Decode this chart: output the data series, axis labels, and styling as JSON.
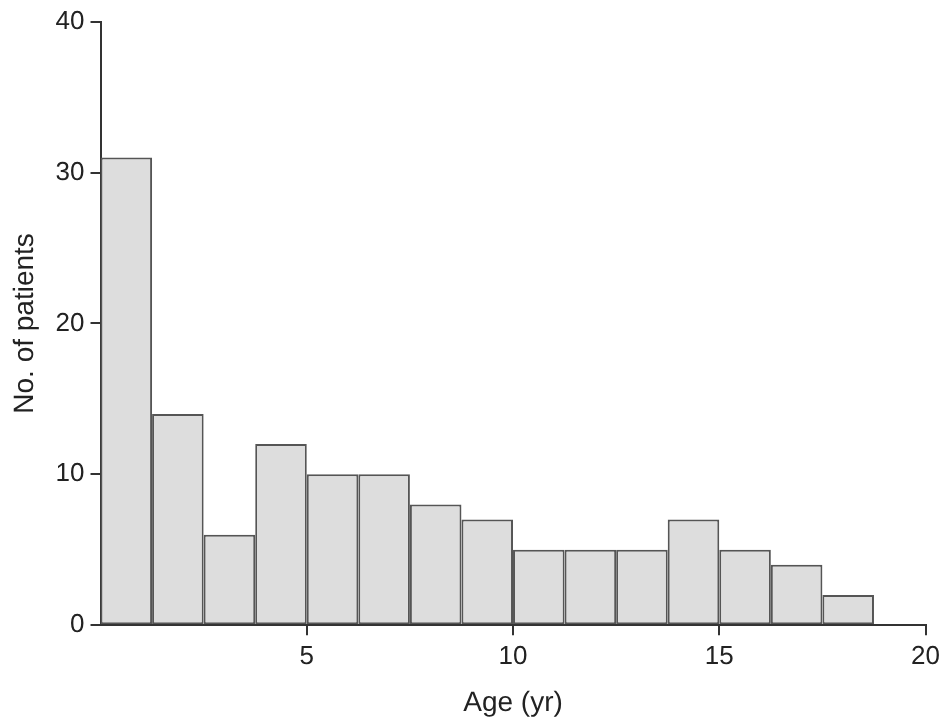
{
  "chart_data": {
    "type": "histogram",
    "xlabel": "Age (yr)",
    "ylabel": "No. of patients",
    "bins": [
      0,
      1.25,
      2.5,
      3.75,
      5,
      6.25,
      7.5,
      8.75,
      10,
      11.25,
      12.5,
      13.75,
      15,
      16.25,
      17.5,
      18.75
    ],
    "values": [
      31,
      14,
      6,
      12,
      10,
      10,
      8,
      7,
      5,
      5,
      5,
      7,
      5,
      4,
      2
    ],
    "color": "#dddddd",
    "xlim": [
      0,
      20
    ],
    "xticks": [
      5,
      10,
      15,
      20
    ],
    "ylim": [
      0,
      40
    ],
    "yticks": [
      0,
      10,
      20,
      30,
      40
    ],
    "grid": false,
    "legend": false
  }
}
